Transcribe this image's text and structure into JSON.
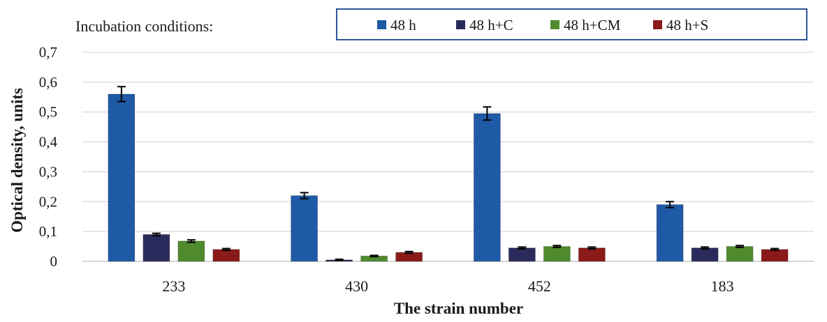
{
  "chart_data": {
    "type": "bar",
    "legend_title": "Incubation conditions:",
    "xlabel": "The strain number",
    "ylabel": "Optical density, units",
    "categories": [
      "233",
      "430",
      "452",
      "183"
    ],
    "ylim": [
      0,
      0.7
    ],
    "yticks": [
      "0",
      "0,1",
      "0,2",
      "0,3",
      "0,4",
      "0,5",
      "0,6",
      "0,7"
    ],
    "grid": true,
    "legend_position": "top-right",
    "series": [
      {
        "name": "48 h",
        "color": "#1f5aa6",
        "values": [
          0.56,
          0.22,
          0.495,
          0.19
        ],
        "errors": [
          0.025,
          0.01,
          0.022,
          0.01
        ]
      },
      {
        "name": "48 h+C",
        "color": "#2b2a5c",
        "values": [
          0.09,
          0.005,
          0.045,
          0.045
        ],
        "errors": [
          0.004,
          0.002,
          0.003,
          0.003
        ]
      },
      {
        "name": "48 h+CM",
        "color": "#4f8a2f",
        "values": [
          0.068,
          0.018,
          0.05,
          0.05
        ],
        "errors": [
          0.004,
          0.002,
          0.003,
          0.003
        ]
      },
      {
        "name": "48 h+S",
        "color": "#8b1a1a",
        "values": [
          0.04,
          0.03,
          0.045,
          0.04
        ],
        "errors": [
          0.003,
          0.003,
          0.003,
          0.003
        ]
      }
    ]
  }
}
